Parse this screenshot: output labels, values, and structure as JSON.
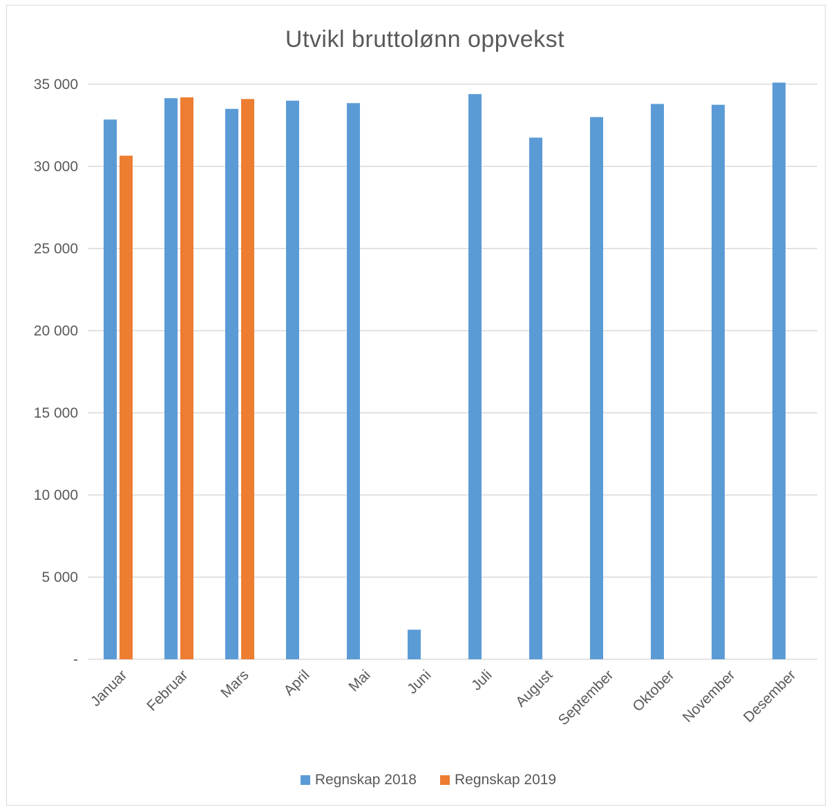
{
  "chart_data": {
    "type": "bar",
    "title": "Utvikl bruttolønn oppvekst",
    "xlabel": "",
    "ylabel": "",
    "ylim": [
      0,
      35000
    ],
    "yticks": [
      0,
      5000,
      10000,
      15000,
      20000,
      25000,
      30000,
      35000
    ],
    "ytick_labels": [
      "-",
      "5 000",
      "10 000",
      "15 000",
      "20 000",
      "25 000",
      "30 000",
      "35 000"
    ],
    "categories": [
      "Januar",
      "Februar",
      "Mars",
      "April",
      "Mai",
      "Juni",
      "Juli",
      "August",
      "September",
      "Oktober",
      "November",
      "Desember"
    ],
    "series": [
      {
        "name": "Regnskap 2018",
        "color": "#5b9bd5",
        "values": [
          32850,
          34150,
          33500,
          34000,
          33850,
          1800,
          34400,
          31750,
          33000,
          33800,
          33750,
          35100
        ]
      },
      {
        "name": "Regnskap 2019",
        "color": "#ed7d31",
        "values": [
          30650,
          34200,
          34100,
          null,
          null,
          null,
          null,
          null,
          null,
          null,
          null,
          null
        ]
      }
    ],
    "grid": true,
    "legend_position": "bottom"
  }
}
